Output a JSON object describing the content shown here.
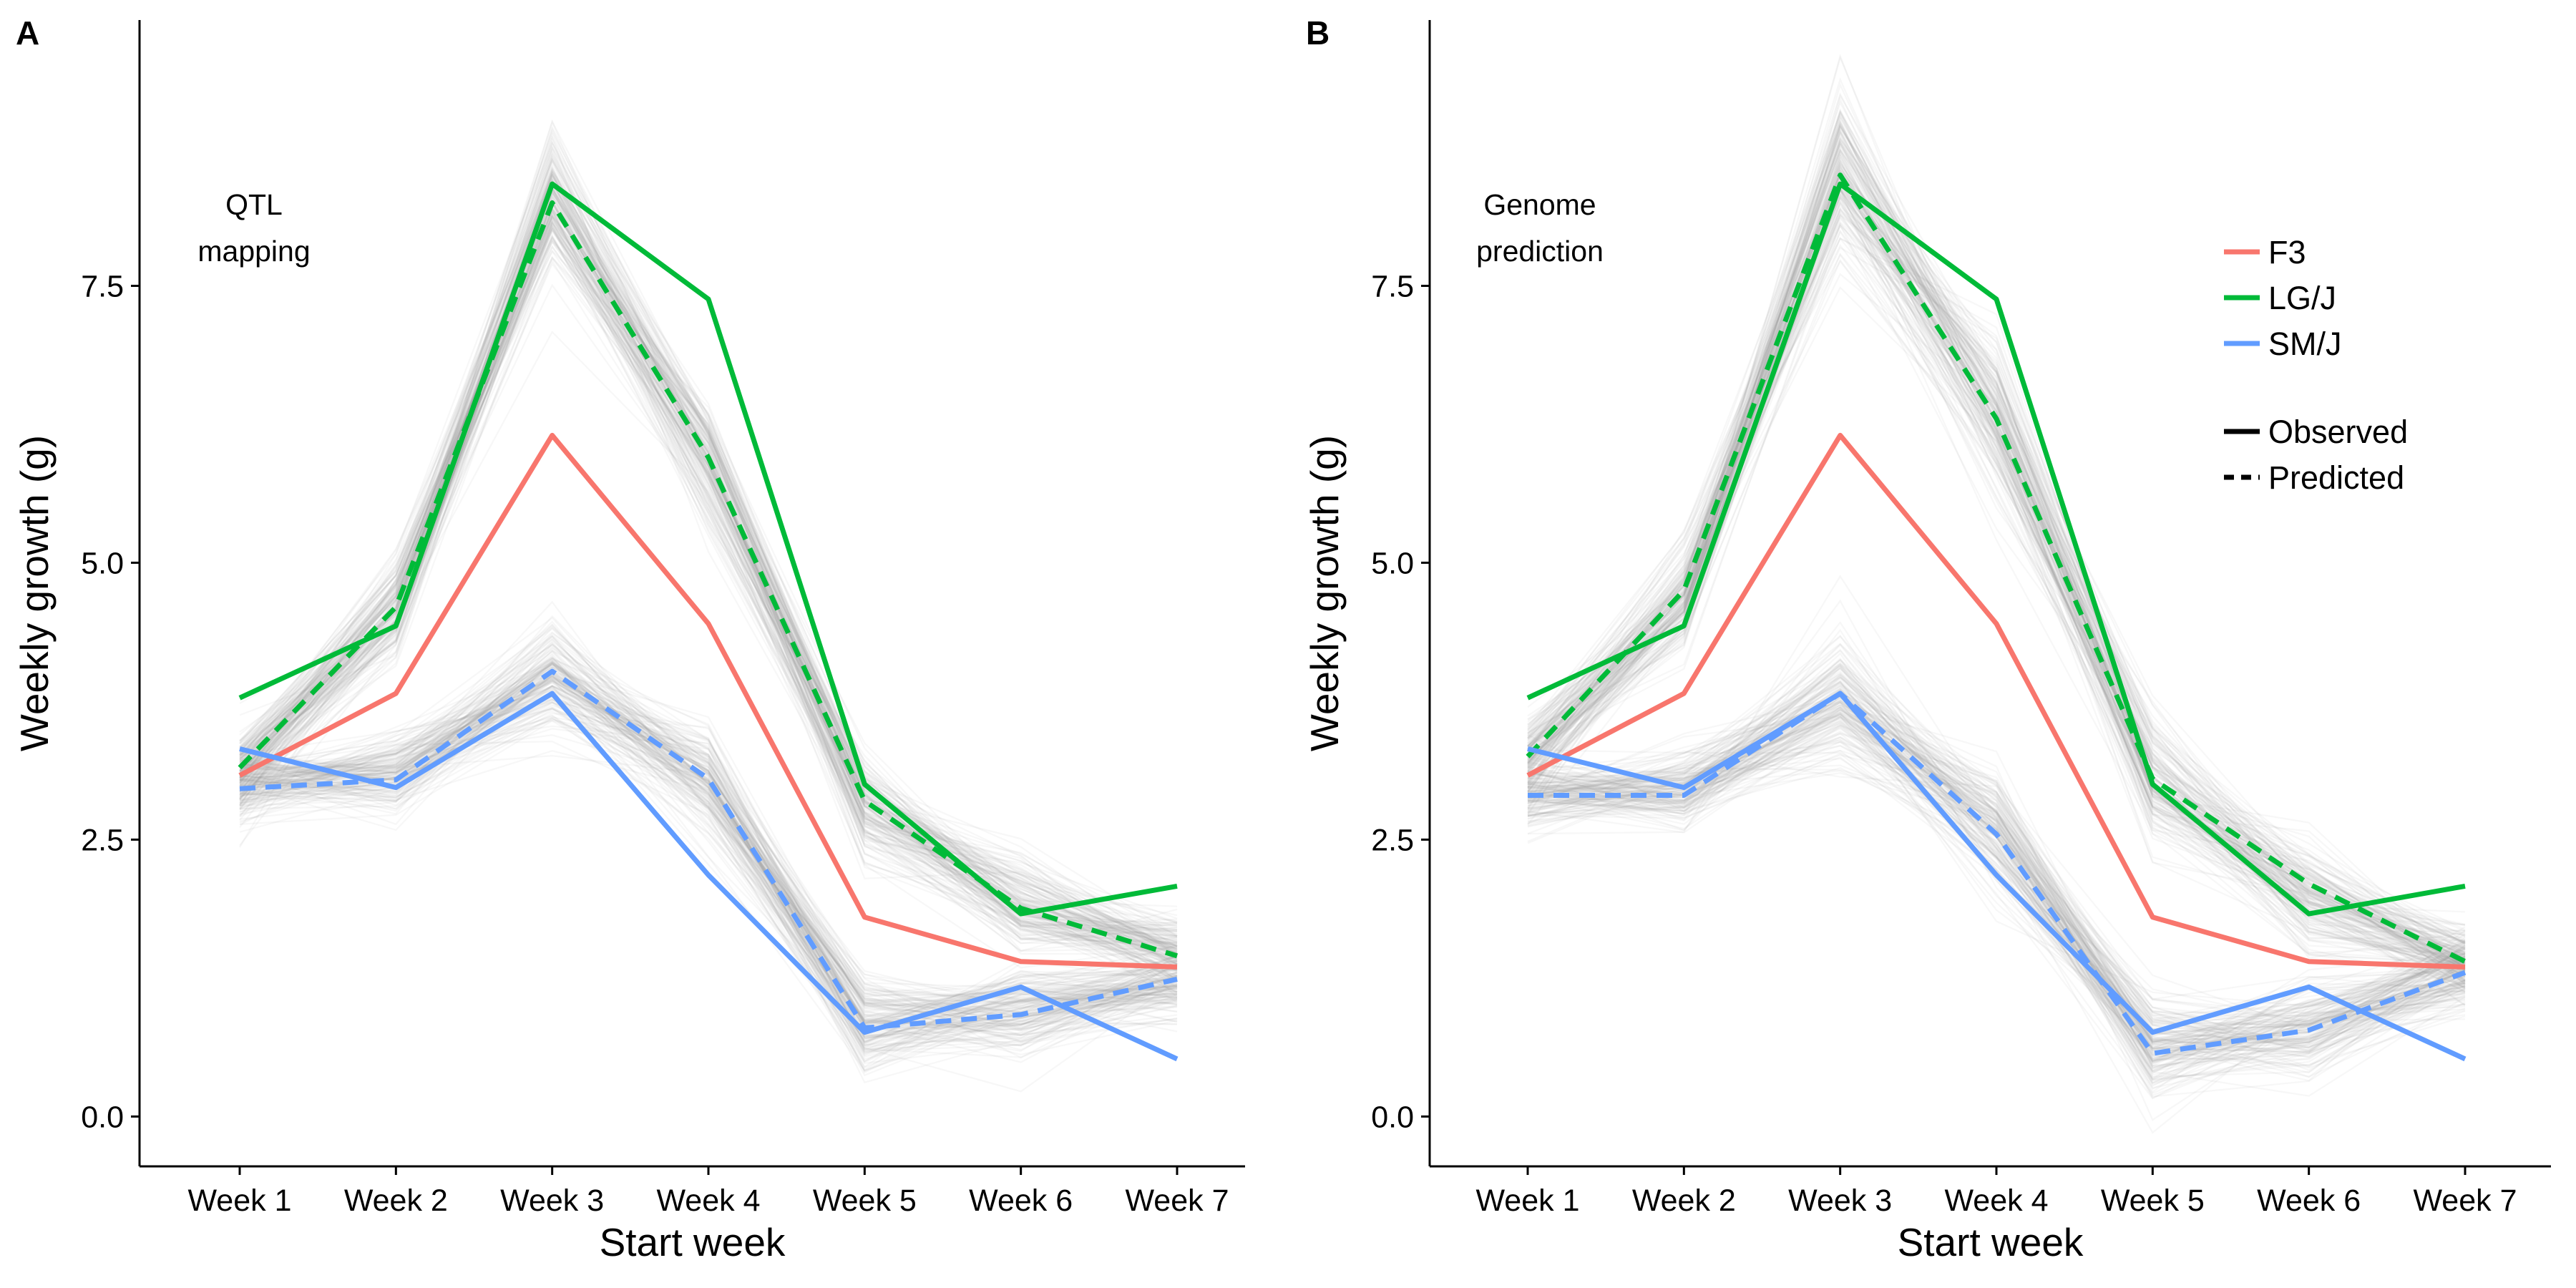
{
  "chart_data": [
    {
      "type": "line",
      "panel_label": "A",
      "annotation": [
        "QTL",
        "mapping"
      ],
      "xlabel": "Start week",
      "ylabel": "Weekly growth (g)",
      "categories": [
        "Week 1",
        "Week 2",
        "Week 3",
        "Week 4",
        "Week 5",
        "Week 6",
        "Week 7"
      ],
      "yticks": [
        "0.0",
        "2.5",
        "5.0",
        "7.5"
      ],
      "ylim": [
        -0.45,
        9.9
      ],
      "grid": false,
      "series": [
        {
          "name": "F3",
          "style": "Observed",
          "color": "#F8766D",
          "values": [
            3.08,
            3.82,
            6.15,
            4.45,
            1.8,
            1.4,
            1.35
          ]
        },
        {
          "name": "LG/J",
          "style": "Observed",
          "color": "#00BA38",
          "values": [
            3.78,
            4.43,
            8.42,
            7.38,
            3.0,
            1.83,
            2.08
          ]
        },
        {
          "name": "LG/J",
          "style": "Predicted",
          "color": "#00BA38",
          "values": [
            3.15,
            4.6,
            8.25,
            5.95,
            2.85,
            1.88,
            1.45
          ]
        },
        {
          "name": "SM/J",
          "style": "Observed",
          "color": "#619CFF",
          "values": [
            3.32,
            2.97,
            3.82,
            2.18,
            0.76,
            1.17,
            0.52
          ]
        },
        {
          "name": "SM/J",
          "style": "Predicted",
          "color": "#619CFF",
          "values": [
            2.96,
            3.04,
            4.02,
            3.05,
            0.8,
            0.92,
            1.24
          ]
        }
      ],
      "simulation_bands": [
        {
          "center": [
            3.1,
            4.6,
            8.3,
            5.9,
            2.8,
            1.9,
            1.5
          ],
          "spread": [
            0.35,
            0.4,
            0.55,
            0.55,
            0.45,
            0.35,
            0.3
          ]
        },
        {
          "center": [
            3.0,
            3.1,
            4.0,
            3.0,
            0.8,
            0.95,
            1.2
          ],
          "spread": [
            0.3,
            0.32,
            0.45,
            0.42,
            0.4,
            0.35,
            0.3
          ]
        }
      ]
    },
    {
      "type": "line",
      "panel_label": "B",
      "annotation": [
        "Genome",
        "prediction"
      ],
      "xlabel": "Start week",
      "ylabel": "Weekly growth (g)",
      "categories": [
        "Week 1",
        "Week 2",
        "Week 3",
        "Week 4",
        "Week 5",
        "Week 6",
        "Week 7"
      ],
      "yticks": [
        "0.0",
        "2.5",
        "5.0",
        "7.5"
      ],
      "ylim": [
        -0.45,
        9.9
      ],
      "grid": false,
      "series": [
        {
          "name": "F3",
          "style": "Observed",
          "color": "#F8766D",
          "values": [
            3.08,
            3.82,
            6.15,
            4.45,
            1.8,
            1.4,
            1.35
          ]
        },
        {
          "name": "LG/J",
          "style": "Observed",
          "color": "#00BA38",
          "values": [
            3.78,
            4.43,
            8.42,
            7.38,
            3.0,
            1.83,
            2.08
          ]
        },
        {
          "name": "LG/J",
          "style": "Predicted",
          "color": "#00BA38",
          "values": [
            3.25,
            4.75,
            8.5,
            6.3,
            3.05,
            2.1,
            1.4
          ]
        },
        {
          "name": "SM/J",
          "style": "Observed",
          "color": "#619CFF",
          "values": [
            3.32,
            2.97,
            3.82,
            2.18,
            0.76,
            1.17,
            0.52
          ]
        },
        {
          "name": "SM/J",
          "style": "Predicted",
          "color": "#619CFF",
          "values": [
            2.9,
            2.9,
            3.82,
            2.55,
            0.57,
            0.78,
            1.3
          ]
        }
      ],
      "simulation_bands": [
        {
          "center": [
            3.2,
            4.7,
            8.5,
            6.3,
            3.0,
            2.0,
            1.4
          ],
          "spread": [
            0.35,
            0.45,
            0.7,
            0.6,
            0.5,
            0.4,
            0.3
          ]
        },
        {
          "center": [
            2.9,
            2.95,
            3.8,
            2.6,
            0.6,
            0.8,
            1.3
          ],
          "spread": [
            0.3,
            0.35,
            0.55,
            0.45,
            0.45,
            0.4,
            0.3
          ]
        }
      ]
    }
  ],
  "legend": {
    "entries": [
      {
        "label": "F3",
        "color": "#F8766D"
      },
      {
        "label": "LG/J",
        "color": "#00BA38"
      },
      {
        "label": "SM/J",
        "color": "#619CFF"
      }
    ],
    "styles": [
      {
        "label": "Observed",
        "dash": "solid"
      },
      {
        "label": "Predicted",
        "dash": "dashed"
      }
    ],
    "placement": "top-right of panel B"
  },
  "colors": {
    "band": "#9E9E9E",
    "axis": "#000000",
    "style_key": "#000000"
  }
}
